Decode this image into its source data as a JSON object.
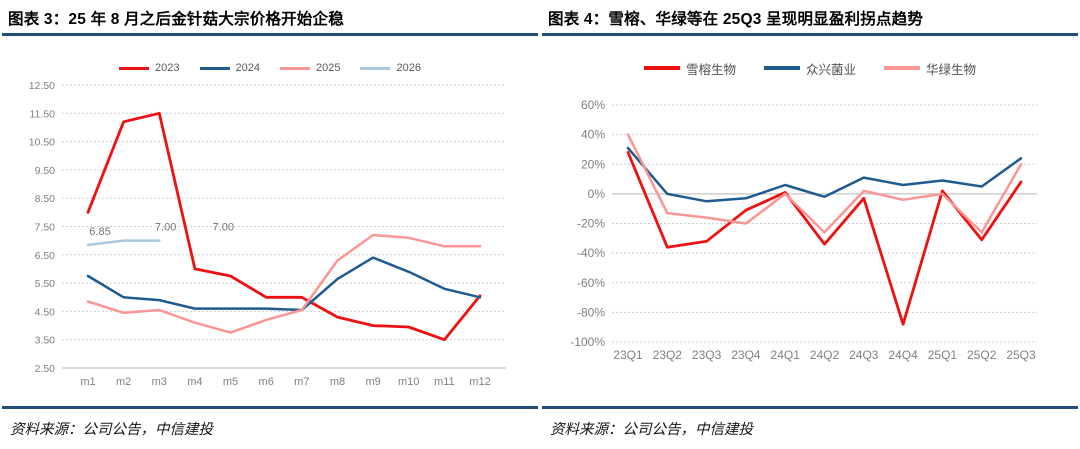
{
  "page": {
    "background": "#FFFFFF"
  },
  "colors": {
    "title_rule": "#1F4E79",
    "axis_text": "#808080",
    "gridline": "#CFCFCF",
    "solid_line": "#B8B8B8",
    "legend_text": "#595959",
    "data_label_text": "#737373",
    "series_red": "#EE1111",
    "series_dark_blue": "#1F5B8E",
    "series_pink": "#FA9693",
    "series_light_blue": "#A9C7DE"
  },
  "figures": [
    {
      "id": "figure-3",
      "title": "图表 3：25 年 8 月之后金针菇大宗价格开始企稳",
      "source": "资料来源：公司公告，中信建投"
    },
    {
      "id": "figure-4",
      "title": "图表 4：雪榕、华绿等在 25Q3 呈现明显盈利拐点趋势",
      "source": "资料来源：公司公告，中信建投"
    }
  ],
  "chart_data": [
    {
      "type": "line",
      "title": "25 年 8 月之后金针菇大宗价格开始企稳",
      "xlabel": "",
      "ylabel": "",
      "categories": [
        "m1",
        "m2",
        "m3",
        "m4",
        "m5",
        "m6",
        "m7",
        "m8",
        "m9",
        "m10",
        "m11",
        "m12"
      ],
      "series": [
        {
          "name": "2023",
          "color": "#EE1111",
          "values": [
            8.0,
            11.2,
            11.5,
            6.0,
            5.75,
            5.0,
            5.0,
            4.3,
            4.0,
            3.95,
            3.5,
            5.05
          ]
        },
        {
          "name": "2024",
          "color": "#1F5B8E",
          "values": [
            5.75,
            5.0,
            4.9,
            4.6,
            4.6,
            4.6,
            4.55,
            5.65,
            6.4,
            5.9,
            5.3,
            5.0
          ]
        },
        {
          "name": "2025",
          "color": "#FA9693",
          "values": [
            4.85,
            4.45,
            4.55,
            4.1,
            3.75,
            4.2,
            4.55,
            6.3,
            7.2,
            7.1,
            6.8,
            6.8
          ]
        },
        {
          "name": "2026",
          "color": "#A9C7DE",
          "values": [
            6.85,
            7.0,
            7.0,
            null,
            null,
            null,
            null,
            null,
            null,
            null,
            null,
            null
          ],
          "data_labels": [
            "6.85",
            "7.00",
            "7.00"
          ]
        }
      ],
      "ylim": [
        2.5,
        12.5
      ],
      "ytick_step": 1,
      "ytick_format": "fixed2",
      "ytick_labels": [
        "2.50",
        "3.50",
        "4.50",
        "5.50",
        "6.50",
        "7.50",
        "8.50",
        "9.50",
        "10.50",
        "11.50",
        "12.50"
      ],
      "grid": true,
      "legend_position": "top"
    },
    {
      "type": "line",
      "title": "雪榕、华绿等在 25Q3 呈现明显盈利拐点趋势",
      "xlabel": "",
      "ylabel": "",
      "categories": [
        "23Q1",
        "23Q2",
        "23Q3",
        "23Q4",
        "24Q1",
        "24Q2",
        "24Q3",
        "24Q4",
        "25Q1",
        "25Q2",
        "25Q3"
      ],
      "series": [
        {
          "name": "雪榕生物",
          "color": "#EE1111",
          "values": [
            28,
            -36,
            -32,
            -11,
            1,
            -34,
            -3,
            -88,
            2,
            -31,
            8
          ]
        },
        {
          "name": "众兴菌业",
          "color": "#1F5B8E",
          "values": [
            31,
            0,
            -5,
            -3,
            6,
            -2,
            11,
            6,
            9,
            5,
            24
          ]
        },
        {
          "name": "华绿生物",
          "color": "#FA9693",
          "values": [
            40,
            -13,
            -16,
            -20,
            0,
            -26,
            2,
            -4,
            0,
            -26,
            20
          ]
        }
      ],
      "ylim": [
        -100,
        60
      ],
      "ytick_step": 20,
      "ytick_format": "percent",
      "ytick_labels": [
        "-100%",
        "-80%",
        "-60%",
        "-40%",
        "-20%",
        "0%",
        "20%",
        "40%",
        "60%"
      ],
      "grid": true,
      "zero_line_solid": true,
      "legend_position": "top"
    }
  ]
}
